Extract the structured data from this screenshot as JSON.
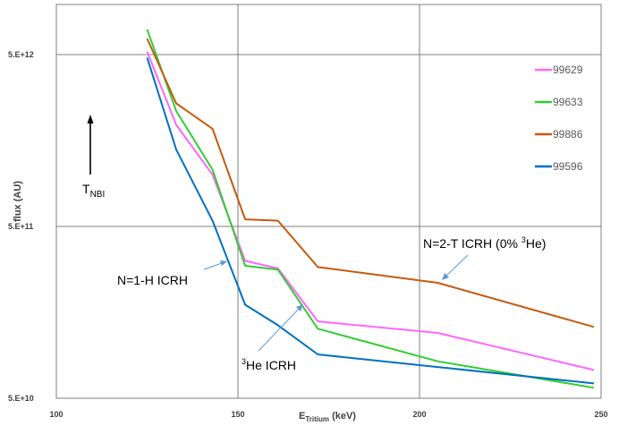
{
  "chart_data": {
    "type": "line",
    "title": "",
    "xlabel": {
      "main": "E",
      "sub": "Tritium",
      "unit": " (keV)"
    },
    "ylabel": "flux (AU)",
    "xlim": [
      100,
      250
    ],
    "ylim": [
      50000000000.0,
      5000000000000.0
    ],
    "y_scale": "log",
    "grid": true,
    "legend_position": "right",
    "x_ticks": [
      100,
      150,
      200,
      250
    ],
    "x_tick_labels": [
      "100",
      "150",
      "200",
      "250"
    ],
    "y_ticks": [
      50000000000.0,
      500000000000.0,
      5000000000000.0
    ],
    "y_tick_labels": [
      "5.E+10",
      "5.E+11",
      "5.E+12"
    ],
    "series": [
      {
        "name": "99629",
        "color": "#ff66ff",
        "x": [
          125,
          133,
          143,
          152,
          161,
          172,
          205,
          248
        ],
        "y": [
          5200000000000.0,
          1950000000000.0,
          1000000000000.0,
          315000000000.0,
          285000000000.0,
          140000000000.0,
          120000000000.0,
          73000000000.0
        ]
      },
      {
        "name": "99633",
        "color": "#33cc33",
        "x": [
          125,
          133,
          143,
          152,
          161,
          172,
          205,
          248
        ],
        "y": [
          7000000000000.0,
          2350000000000.0,
          1070000000000.0,
          295000000000.0,
          280000000000.0,
          127000000000.0,
          82000000000.0,
          57500000000.0
        ]
      },
      {
        "name": "99886",
        "color": "#c55a11",
        "x": [
          125,
          133,
          143,
          152,
          161,
          172,
          205,
          248
        ],
        "y": [
          6200000000000.0,
          2600000000000.0,
          1850000000000.0,
          550000000000.0,
          540000000000.0,
          290000000000.0,
          235000000000.0,
          130000000000.0
        ]
      },
      {
        "name": "99596",
        "color": "#0070c0",
        "x": [
          125,
          133,
          143,
          152,
          161,
          172,
          205,
          248
        ],
        "y": [
          4800000000000.0,
          1400000000000.0,
          540000000000.0,
          175000000000.0,
          133000000000.0,
          90000000000.0,
          76000000000.0,
          61000000000.0
        ]
      }
    ],
    "annotations": [
      {
        "id": "nbi",
        "text_main": "T",
        "text_sub": "NBI"
      },
      {
        "id": "n1h",
        "text": "N=1-H ICRH"
      },
      {
        "id": "he3",
        "text_sup": "3",
        "text": "He ICRH"
      },
      {
        "id": "n2t",
        "text_before": "N=2-T ICRH (0% ",
        "text_sup": "3",
        "text_after": "He)"
      }
    ]
  }
}
